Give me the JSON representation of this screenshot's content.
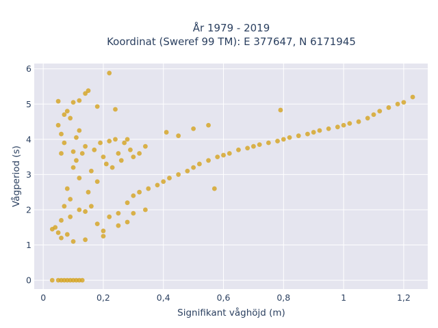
{
  "chart_data": {
    "type": "scatter",
    "title_lines": [
      "År 1979 - 2019",
      "Koordinat (Sweref 99 TM): E 377647, N 6171945"
    ],
    "xlabel": "Signifikant våghöjd (m)",
    "ylabel": "Vågperiod (s)",
    "xlim": [
      -0.03,
      1.28
    ],
    "ylim": [
      -0.25,
      6.15
    ],
    "x_ticks": [
      {
        "value": 0,
        "label": "0"
      },
      {
        "value": 0.2,
        "label": "0,2"
      },
      {
        "value": 0.4,
        "label": "0,4"
      },
      {
        "value": 0.6,
        "label": "0,6"
      },
      {
        "value": 0.8,
        "label": "0,8"
      },
      {
        "value": 1.0,
        "label": "1"
      },
      {
        "value": 1.2,
        "label": "1,2"
      }
    ],
    "y_ticks": [
      {
        "value": 0,
        "label": "0"
      },
      {
        "value": 1,
        "label": "1"
      },
      {
        "value": 2,
        "label": "2"
      },
      {
        "value": 3,
        "label": "3"
      },
      {
        "value": 4,
        "label": "4"
      },
      {
        "value": 5,
        "label": "5"
      },
      {
        "value": 6,
        "label": "6"
      }
    ],
    "grid": true,
    "background_color": "#e5e5ef",
    "marker_color": "#d4a21e",
    "series": [
      {
        "points": [
          [
            0.03,
            0.0
          ],
          [
            0.05,
            0.0
          ],
          [
            0.06,
            0.0
          ],
          [
            0.07,
            0.0
          ],
          [
            0.08,
            0.0
          ],
          [
            0.09,
            0.0
          ],
          [
            0.1,
            0.0
          ],
          [
            0.11,
            0.0
          ],
          [
            0.12,
            0.0
          ],
          [
            0.13,
            0.0
          ],
          [
            0.03,
            1.45
          ],
          [
            0.04,
            1.5
          ],
          [
            0.05,
            1.35
          ],
          [
            0.06,
            1.7
          ],
          [
            0.07,
            2.1
          ],
          [
            0.08,
            2.6
          ],
          [
            0.09,
            2.3
          ],
          [
            0.1,
            3.2
          ],
          [
            0.11,
            3.4
          ],
          [
            0.12,
            2.9
          ],
          [
            0.13,
            3.6
          ],
          [
            0.14,
            3.8
          ],
          [
            0.15,
            2.5
          ],
          [
            0.16,
            3.1
          ],
          [
            0.17,
            3.7
          ],
          [
            0.18,
            2.8
          ],
          [
            0.19,
            3.9
          ],
          [
            0.2,
            3.5
          ],
          [
            0.21,
            3.3
          ],
          [
            0.22,
            3.95
          ],
          [
            0.23,
            3.2
          ],
          [
            0.24,
            4.0
          ],
          [
            0.25,
            3.6
          ],
          [
            0.26,
            3.4
          ],
          [
            0.27,
            3.9
          ],
          [
            0.28,
            4.0
          ],
          [
            0.29,
            3.7
          ],
          [
            0.3,
            3.5
          ],
          [
            0.32,
            3.6
          ],
          [
            0.34,
            3.8
          ],
          [
            0.05,
            5.08
          ],
          [
            0.07,
            4.7
          ],
          [
            0.08,
            4.8
          ],
          [
            0.1,
            5.05
          ],
          [
            0.12,
            5.1
          ],
          [
            0.14,
            5.3
          ],
          [
            0.15,
            5.38
          ],
          [
            0.18,
            4.93
          ],
          [
            0.22,
            5.88
          ],
          [
            0.24,
            4.85
          ],
          [
            0.05,
            4.4
          ],
          [
            0.06,
            4.15
          ],
          [
            0.09,
            4.6
          ],
          [
            0.12,
            4.25
          ],
          [
            0.07,
            3.9
          ],
          [
            0.06,
            3.6
          ],
          [
            0.1,
            3.65
          ],
          [
            0.11,
            4.05
          ],
          [
            0.09,
            1.8
          ],
          [
            0.12,
            2.0
          ],
          [
            0.14,
            1.95
          ],
          [
            0.16,
            2.1
          ],
          [
            0.18,
            1.6
          ],
          [
            0.2,
            1.4
          ],
          [
            0.22,
            1.8
          ],
          [
            0.25,
            1.9
          ],
          [
            0.28,
            2.2
          ],
          [
            0.3,
            2.4
          ],
          [
            0.32,
            2.5
          ],
          [
            0.35,
            2.6
          ],
          [
            0.38,
            2.7
          ],
          [
            0.4,
            2.8
          ],
          [
            0.42,
            2.9
          ],
          [
            0.45,
            3.0
          ],
          [
            0.48,
            3.1
          ],
          [
            0.5,
            3.2
          ],
          [
            0.52,
            3.3
          ],
          [
            0.55,
            3.4
          ],
          [
            0.58,
            3.5
          ],
          [
            0.6,
            3.55
          ],
          [
            0.62,
            3.6
          ],
          [
            0.65,
            3.7
          ],
          [
            0.68,
            3.75
          ],
          [
            0.7,
            3.8
          ],
          [
            0.72,
            3.85
          ],
          [
            0.75,
            3.9
          ],
          [
            0.78,
            3.95
          ],
          [
            0.8,
            4.0
          ],
          [
            0.82,
            4.05
          ],
          [
            0.85,
            4.1
          ],
          [
            0.88,
            4.15
          ],
          [
            0.9,
            4.2
          ],
          [
            0.92,
            4.25
          ],
          [
            0.95,
            4.3
          ],
          [
            0.98,
            4.35
          ],
          [
            1.0,
            4.4
          ],
          [
            1.02,
            4.45
          ],
          [
            1.05,
            4.5
          ],
          [
            1.08,
            4.6
          ],
          [
            1.1,
            4.7
          ],
          [
            1.12,
            4.8
          ],
          [
            1.15,
            4.9
          ],
          [
            1.18,
            5.0
          ],
          [
            1.2,
            5.05
          ],
          [
            1.23,
            5.2
          ],
          [
            0.79,
            4.83
          ],
          [
            0.5,
            4.3
          ],
          [
            0.55,
            4.4
          ],
          [
            0.45,
            4.1
          ],
          [
            0.41,
            4.2
          ],
          [
            0.57,
            2.6
          ],
          [
            0.3,
            1.9
          ],
          [
            0.34,
            2.0
          ],
          [
            0.1,
            1.1
          ],
          [
            0.14,
            1.15
          ],
          [
            0.06,
            1.2
          ],
          [
            0.08,
            1.3
          ],
          [
            0.2,
            1.25
          ],
          [
            0.25,
            1.55
          ],
          [
            0.28,
            1.65
          ]
        ]
      }
    ]
  }
}
